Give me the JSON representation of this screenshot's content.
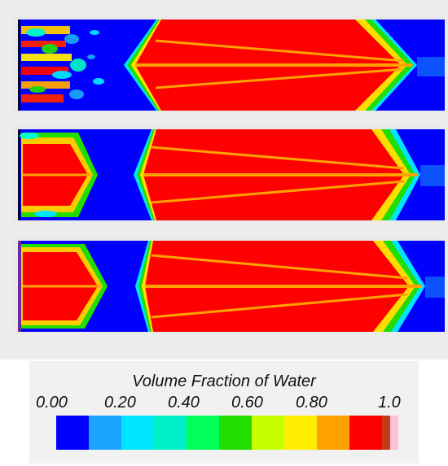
{
  "legend": {
    "title": "Volume Fraction of Water",
    "ticks": [
      "0.00",
      "0.20",
      "0.40",
      "0.60",
      "0.80",
      "1.0"
    ],
    "colors": [
      "#0000ff",
      "#1aa3ff",
      "#00e5ff",
      "#00f0c8",
      "#00ff5a",
      "#22dd00",
      "#c8ff00",
      "#ffee00",
      "#ffa200",
      "#ff0000",
      "#c43c14",
      "#ffc0d8"
    ]
  },
  "panels": [
    {
      "index": 1,
      "bg": "#0000ff",
      "fill": "#ff0000",
      "streak": "#ff9a00"
    },
    {
      "index": 2,
      "bg": "#0000ff",
      "fill": "#ff0000",
      "streak": "#ff9a00"
    },
    {
      "index": 3,
      "bg": "#0000ff",
      "fill": "#ff0000",
      "streak": "#ff9a00"
    }
  ]
}
